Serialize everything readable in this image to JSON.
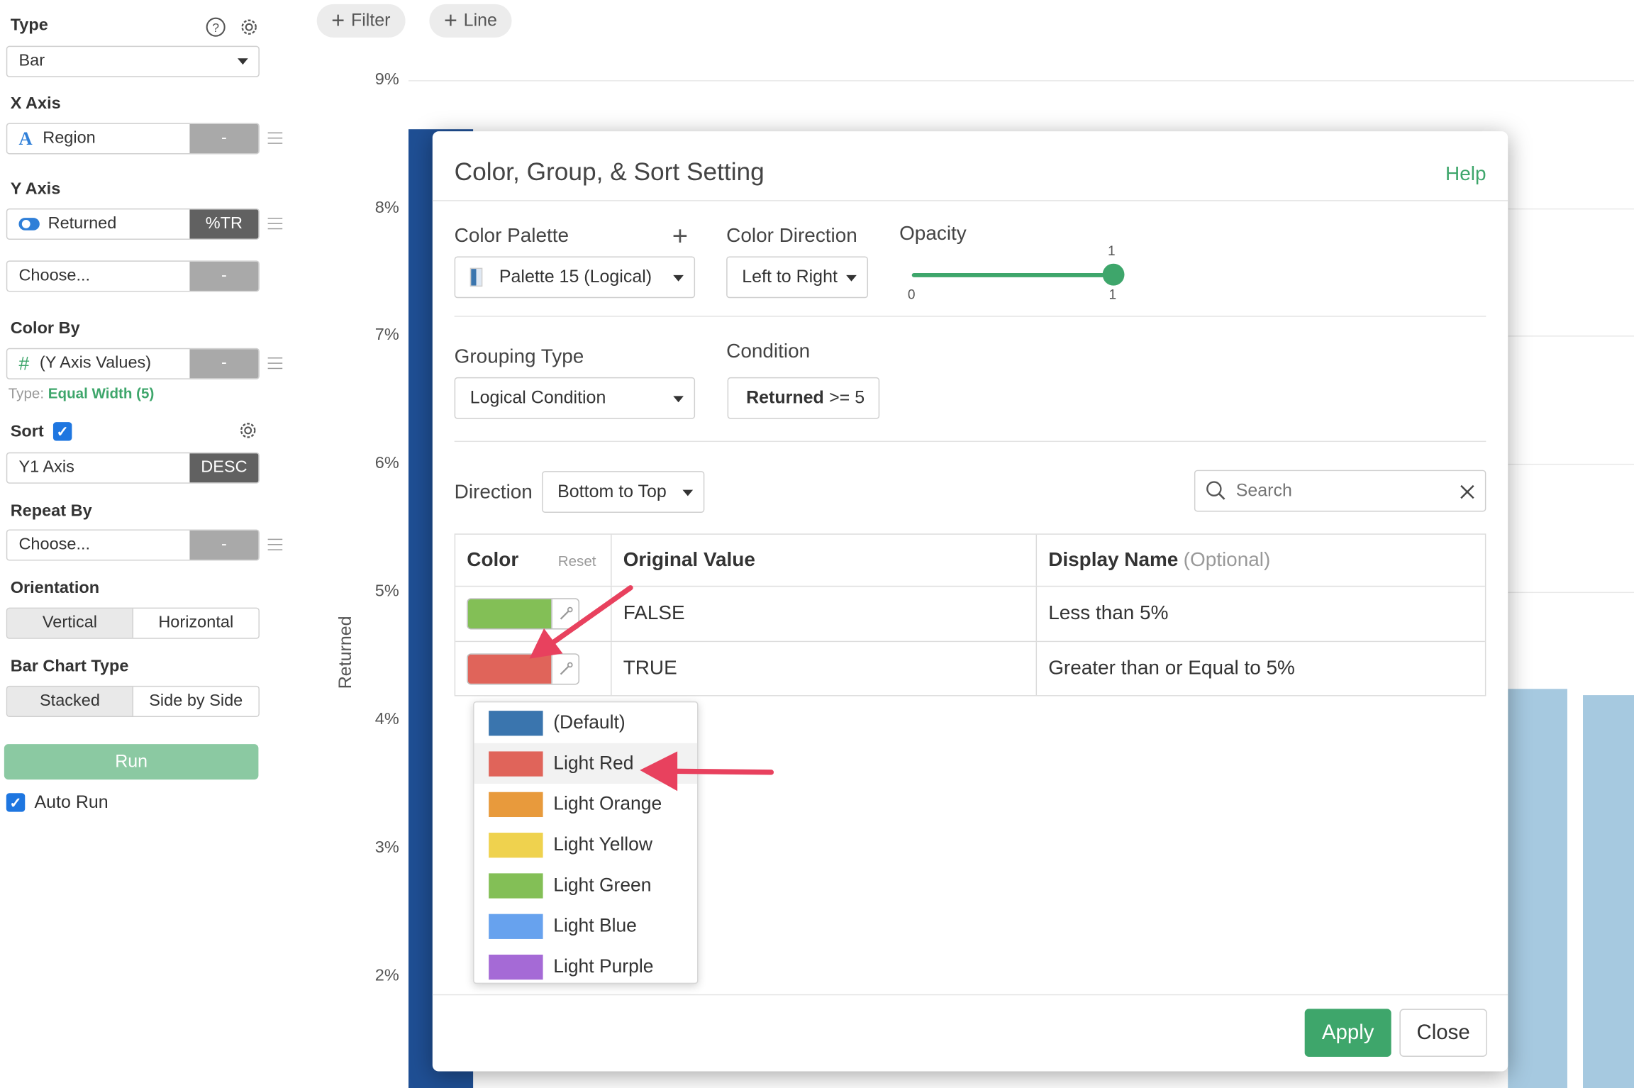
{
  "sidebar": {
    "type": {
      "label": "Type",
      "value": "Bar"
    },
    "x_axis": {
      "label": "X Axis",
      "value": "Region",
      "side": "-"
    },
    "y_axis": {
      "label": "Y Axis",
      "value": "Returned",
      "side": "%TR",
      "second_value": "Choose...",
      "second_side": "-"
    },
    "color_by": {
      "label": "Color By",
      "value": "(Y Axis Values)",
      "side": "-",
      "type_prefix": "Type:",
      "type_value": "Equal Width (5)"
    },
    "sort": {
      "label": "Sort",
      "value": "Y1 Axis",
      "side": "DESC"
    },
    "repeat_by": {
      "label": "Repeat By",
      "value": "Choose...",
      "side": "-"
    },
    "orientation": {
      "label": "Orientation",
      "options": [
        "Vertical",
        "Horizontal"
      ]
    },
    "bar_chart_type": {
      "label": "Bar Chart Type",
      "options": [
        "Stacked",
        "Side by Side"
      ]
    },
    "run_label": "Run",
    "auto_run_label": "Auto Run"
  },
  "toolbar": {
    "filter_label": "Filter",
    "line_label": "Line"
  },
  "chart": {
    "y_axis_label": "Returned",
    "y_ticks": [
      "9%",
      "8%",
      "7%",
      "6%",
      "5%",
      "4%",
      "3%",
      "2%"
    ]
  },
  "modal": {
    "title": "Color, Group, & Sort Setting",
    "help_label": "Help",
    "color_palette_label": "Color Palette",
    "color_palette_value": "Palette 15 (Logical)",
    "color_direction_label": "Color Direction",
    "color_direction_value": "Left to Right",
    "opacity_label": "Opacity",
    "opacity_value": "1",
    "opacity_min": "0",
    "opacity_max": "1",
    "opacity_level": 1,
    "grouping_type_label": "Grouping Type",
    "grouping_type_value": "Logical Condition",
    "condition_label": "Condition",
    "condition_field": "Returned",
    "condition_rule": ">= 5",
    "direction_label": "Direction",
    "direction_value": "Bottom to Top",
    "search_placeholder": "Search",
    "table": {
      "col_color": "Color",
      "reset_label": "Reset",
      "col_original": "Original Value",
      "col_display": "Display Name",
      "col_display_hint": "(Optional)",
      "rows": [
        {
          "color": "#83bf56",
          "original": "FALSE",
          "display": "Less than 5%"
        },
        {
          "color": "#e0645a",
          "original": "TRUE",
          "display": "Greater than or Equal to 5%"
        }
      ]
    },
    "color_menu": [
      {
        "name": "(Default)",
        "color": "#3a75ae"
      },
      {
        "name": "Light Red",
        "color": "#e0645a"
      },
      {
        "name": "Light Orange",
        "color": "#e89a3c"
      },
      {
        "name": "Light Yellow",
        "color": "#efd24e"
      },
      {
        "name": "Light Green",
        "color": "#83bf56"
      },
      {
        "name": "Light Blue",
        "color": "#67a2ee"
      },
      {
        "name": "Light Purple",
        "color": "#a56ad6"
      }
    ],
    "apply_label": "Apply",
    "close_label": "Close"
  },
  "colors": {
    "accent_green": "#3ea66b",
    "run_button": "#8bc9a2",
    "checkbox_blue": "#1e76e0",
    "highlight_arrow": "#e8415e"
  }
}
